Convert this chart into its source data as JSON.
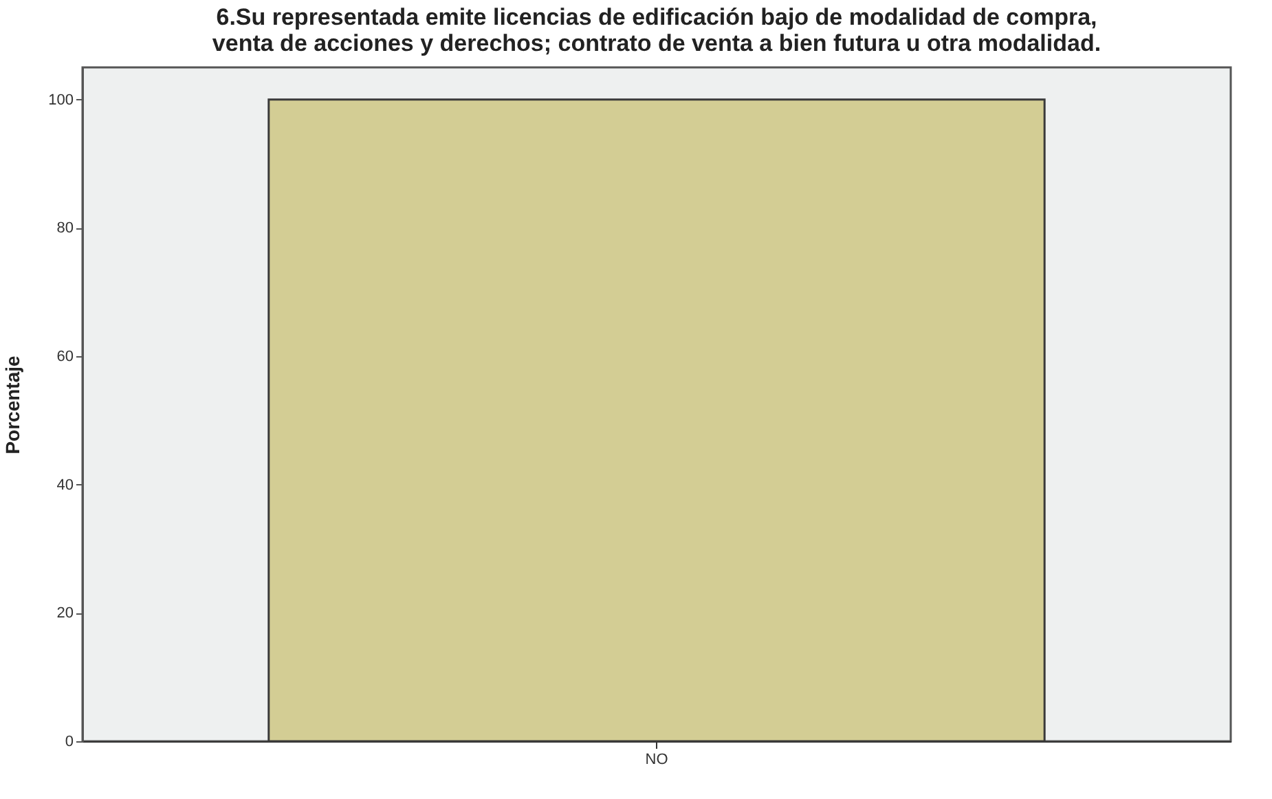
{
  "chart_data": {
    "type": "bar",
    "title": [
      "6.Su representada emite licencias de edificación bajo de modalidad de compra,",
      "venta de acciones y derechos; contrato de venta a bien futura u otra modalidad."
    ],
    "ylabel": "Porcentaje",
    "categories": [
      "NO"
    ],
    "values": [
      100
    ],
    "color": "#d3cd94",
    "ylim": [
      0,
      105
    ],
    "yticks": [
      0,
      20,
      40,
      60,
      80,
      100
    ],
    "grid": false
  }
}
